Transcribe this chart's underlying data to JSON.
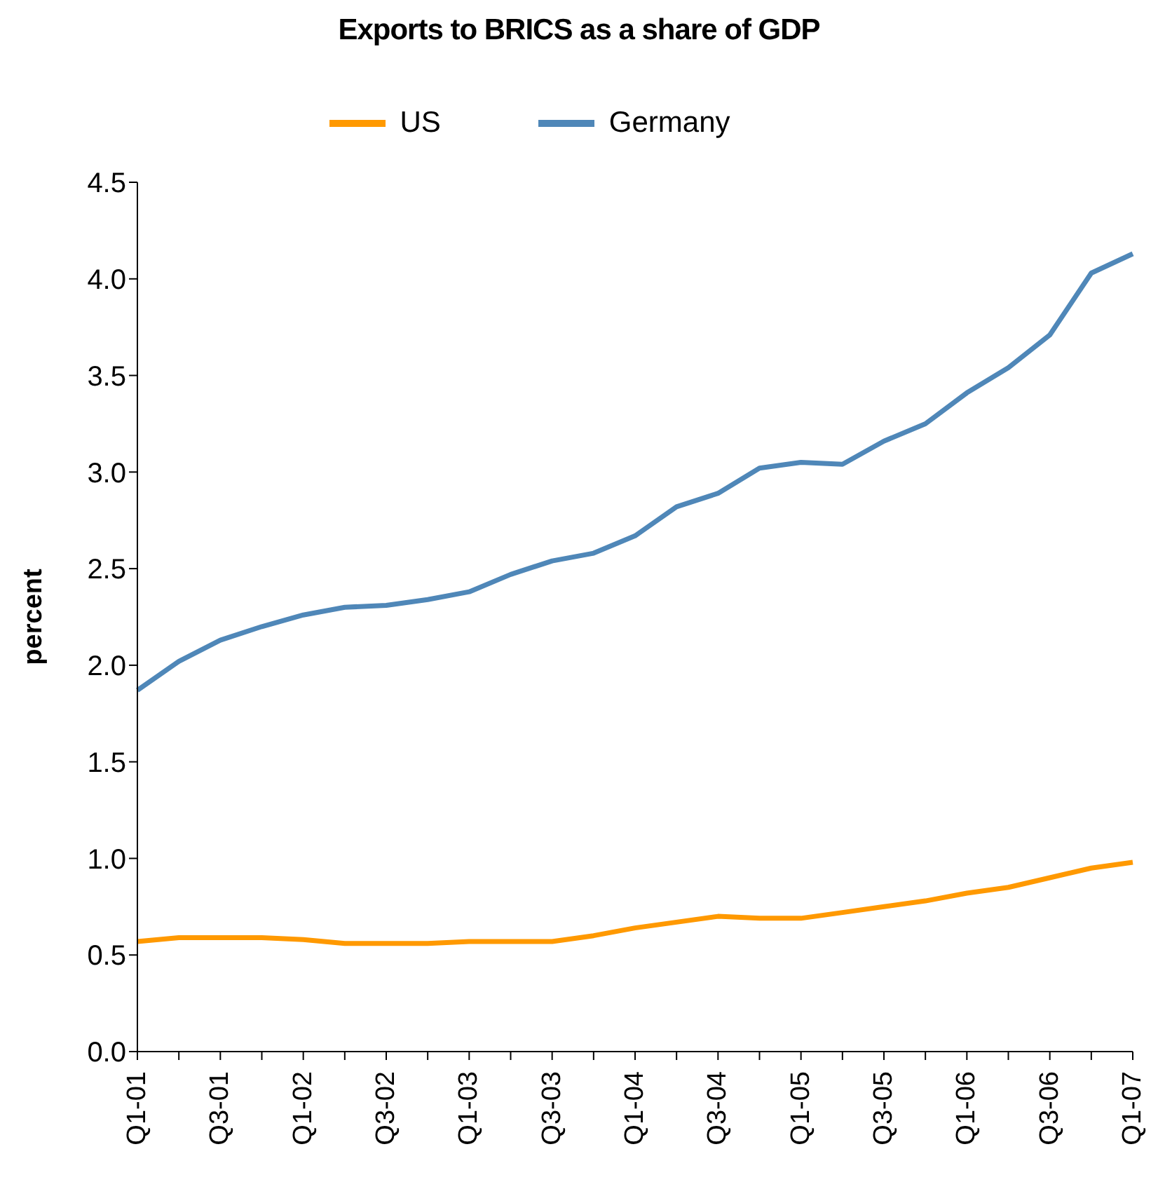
{
  "chart_data": {
    "type": "line",
    "title": "Exports to BRICS as a share of GDP",
    "ylabel": "percent",
    "categories": [
      "Q1-01",
      null,
      "Q3-01",
      null,
      "Q1-02",
      null,
      "Q3-02",
      null,
      "Q1-03",
      null,
      "Q3-03",
      null,
      "Q1-04",
      null,
      "Q3-04",
      null,
      "Q1-05",
      null,
      "Q3-05",
      null,
      "Q1-06",
      null,
      "Q3-06",
      null,
      "Q1-07"
    ],
    "series": [
      {
        "name": "US",
        "color": "#ff9900",
        "values": [
          0.57,
          0.59,
          0.59,
          0.59,
          0.58,
          0.56,
          0.56,
          0.56,
          0.57,
          0.57,
          0.57,
          0.6,
          0.64,
          0.67,
          0.7,
          0.69,
          0.69,
          0.72,
          0.75,
          0.78,
          0.82,
          0.85,
          0.9,
          0.95,
          0.98
        ]
      },
      {
        "name": "Germany",
        "color": "#4f87b8",
        "values": [
          1.87,
          2.02,
          2.13,
          2.2,
          2.26,
          2.3,
          2.31,
          2.34,
          2.38,
          2.47,
          2.54,
          2.58,
          2.67,
          2.82,
          2.89,
          3.02,
          3.05,
          3.04,
          3.16,
          3.25,
          3.41,
          3.54,
          3.71,
          4.03,
          4.13
        ]
      }
    ],
    "ylim": [
      0,
      4.5
    ],
    "yticks": [
      {
        "value": 0,
        "label": "0.0"
      },
      {
        "value": 0.5,
        "label": "0.5"
      },
      {
        "value": 1,
        "label": "1.0"
      },
      {
        "value": 1.5,
        "label": "1.5"
      },
      {
        "value": 2,
        "label": "2.0"
      },
      {
        "value": 2.5,
        "label": "2.5"
      },
      {
        "value": 3,
        "label": "3.0"
      },
      {
        "value": 3.5,
        "label": "3.5"
      },
      {
        "value": 4,
        "label": "4.0"
      },
      {
        "value": 4.5,
        "label": "4.5"
      }
    ],
    "grid": false,
    "legend": "top",
    "marker": "none",
    "line_style": "solid"
  }
}
